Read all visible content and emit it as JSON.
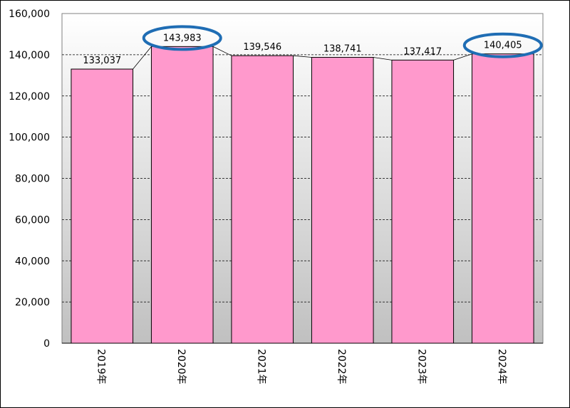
{
  "chart_data": {
    "type": "bar",
    "categories": [
      "2019年",
      "2020年",
      "2021年",
      "2022年",
      "2023年",
      "2024年"
    ],
    "values": [
      133037,
      143983,
      139546,
      138741,
      137417,
      140405
    ],
    "data_labels": [
      "133,037",
      "143,983",
      "139,546",
      "138,741",
      "137,417",
      "140,405"
    ],
    "y_ticks": [
      "0",
      "20,000",
      "40,000",
      "60,000",
      "80,000",
      "100,000",
      "120,000",
      "140,000",
      "160,000"
    ],
    "ylim": [
      0,
      160000
    ],
    "title": "",
    "xlabel": "",
    "ylabel": "",
    "grid": "horizontal dashed",
    "highlighted": [
      "2020年",
      "2024年"
    ],
    "colors": {
      "bar_fill": "#ff99cc",
      "bar_stroke": "#000000",
      "plot_bg_top": "#ffffff",
      "plot_bg_bottom": "#c0c0c0",
      "highlight_ring": "#1f6db4"
    }
  }
}
